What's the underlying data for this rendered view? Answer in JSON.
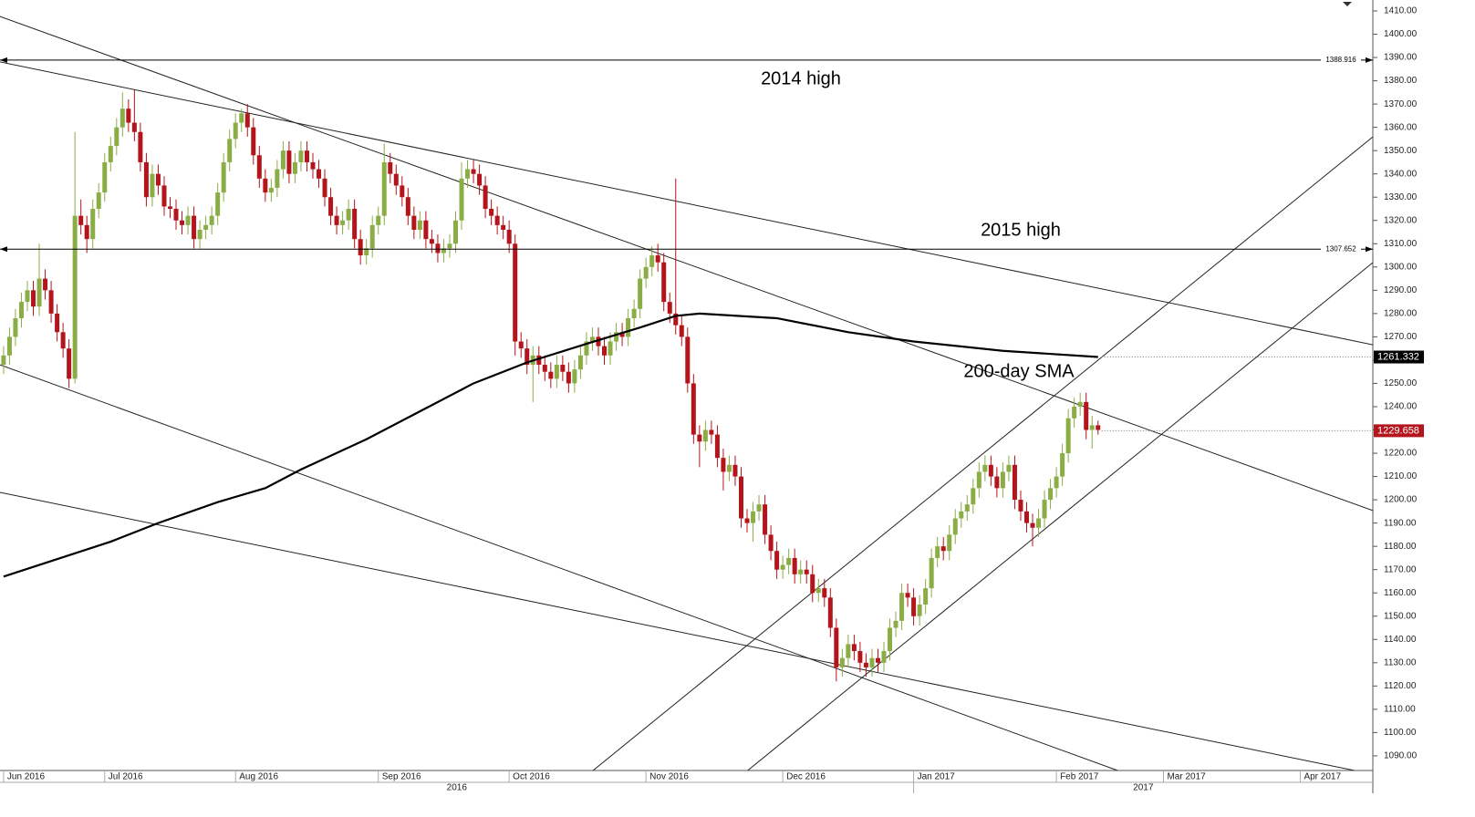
{
  "chart_data": {
    "type": "candlestick",
    "ylim": [
      1083.7,
      1414.7
    ],
    "xlim": [
      -0.6,
      230.2
    ],
    "yticks": [
      {
        "value": 1090,
        "label": "1090.00"
      },
      {
        "value": 1100,
        "label": "1100.00"
      },
      {
        "value": 1110,
        "label": "1110.00"
      },
      {
        "value": 1120,
        "label": "1120.00"
      },
      {
        "value": 1130,
        "label": "1130.00"
      },
      {
        "value": 1140,
        "label": "1140.00"
      },
      {
        "value": 1150,
        "label": "1150.00"
      },
      {
        "value": 1160,
        "label": "1160.00"
      },
      {
        "value": 1170,
        "label": "1170.00"
      },
      {
        "value": 1180,
        "label": "1180.00"
      },
      {
        "value": 1190,
        "label": "1190.00"
      },
      {
        "value": 1200,
        "label": "1200.00"
      },
      {
        "value": 1210,
        "label": "1210.00"
      },
      {
        "value": 1220,
        "label": "1220.00"
      },
      {
        "value": 1230,
        "label": "1230.00"
      },
      {
        "value": 1240,
        "label": "1240.00"
      },
      {
        "value": 1250,
        "label": "1250.00"
      },
      {
        "value": 1260,
        "label": "1260.00"
      },
      {
        "value": 1270,
        "label": "1270.00"
      },
      {
        "value": 1280,
        "label": "1280.00"
      },
      {
        "value": 1290,
        "label": "1290.00"
      },
      {
        "value": 1300,
        "label": "1300.00"
      },
      {
        "value": 1310,
        "label": "1310.00"
      },
      {
        "value": 1320,
        "label": "1320.00"
      },
      {
        "value": 1330,
        "label": "1330.00"
      },
      {
        "value": 1340,
        "label": "1340.00"
      },
      {
        "value": 1350,
        "label": "1350.00"
      },
      {
        "value": 1360,
        "label": "1360.00"
      },
      {
        "value": 1370,
        "label": "1370.00"
      },
      {
        "value": 1380,
        "label": "1380.00"
      },
      {
        "value": 1390,
        "label": "1390.00"
      },
      {
        "value": 1400,
        "label": "1400.00"
      },
      {
        "value": 1410,
        "label": "1410.00"
      }
    ],
    "xticks": [
      {
        "value": 0,
        "label": "Jun 2016"
      },
      {
        "value": 17,
        "label": "Jul 2016"
      },
      {
        "value": 39,
        "label": "Aug 2016"
      },
      {
        "value": 63,
        "label": "Sep 2016"
      },
      {
        "value": 85,
        "label": "Oct 2016"
      },
      {
        "value": 108,
        "label": "Nov 2016"
      },
      {
        "value": 131,
        "label": "Dec 2016"
      },
      {
        "value": 153,
        "label": "Jan 2017"
      },
      {
        "value": 177,
        "label": "Feb 2017"
      },
      {
        "value": 195,
        "label": "Mar 2017"
      },
      {
        "value": 218,
        "label": "Apr 2017"
      }
    ],
    "years": [
      "2016",
      "2017"
    ],
    "up_color": "#8aad45",
    "down_color": "#b4141b",
    "candles": [
      [
        1258,
        1266,
        1254,
        1262
      ],
      [
        1262,
        1274,
        1258,
        1270
      ],
      [
        1270,
        1282,
        1266,
        1278
      ],
      [
        1278,
        1289,
        1274,
        1285
      ],
      [
        1285,
        1294,
        1281,
        1290
      ],
      [
        1290,
        1294,
        1279,
        1283
      ],
      [
        1283,
        1310,
        1279,
        1295
      ],
      [
        1295,
        1299,
        1286,
        1290
      ],
      [
        1290,
        1294,
        1276,
        1280
      ],
      [
        1280,
        1284,
        1268,
        1272
      ],
      [
        1272,
        1276,
        1261,
        1265
      ],
      [
        1265,
        1269,
        1248,
        1252
      ],
      [
        1252,
        1358,
        1250,
        1322
      ],
      [
        1322,
        1329,
        1314,
        1318
      ],
      [
        1318,
        1322,
        1306,
        1312
      ],
      [
        1312,
        1329,
        1308,
        1325
      ],
      [
        1325,
        1336,
        1321,
        1332
      ],
      [
        1332,
        1349,
        1328,
        1345
      ],
      [
        1345,
        1356,
        1341,
        1352
      ],
      [
        1352,
        1364,
        1348,
        1360
      ],
      [
        1360,
        1375,
        1356,
        1368
      ],
      [
        1368,
        1372,
        1358,
        1362
      ],
      [
        1362,
        1376,
        1354,
        1358
      ],
      [
        1358,
        1362,
        1341,
        1345
      ],
      [
        1345,
        1349,
        1326,
        1330
      ],
      [
        1330,
        1344,
        1326,
        1340
      ],
      [
        1340,
        1344,
        1331,
        1335
      ],
      [
        1335,
        1339,
        1322,
        1326
      ],
      [
        1326,
        1330,
        1321,
        1325
      ],
      [
        1325,
        1329,
        1316,
        1320
      ],
      [
        1320,
        1324,
        1314,
        1318
      ],
      [
        1318,
        1326,
        1314,
        1322
      ],
      [
        1322,
        1326,
        1308,
        1312
      ],
      [
        1312,
        1320,
        1308,
        1316
      ],
      [
        1316,
        1322,
        1312,
        1318
      ],
      [
        1318,
        1326,
        1314,
        1322
      ],
      [
        1322,
        1336,
        1318,
        1332
      ],
      [
        1332,
        1349,
        1328,
        1345
      ],
      [
        1345,
        1359,
        1341,
        1355
      ],
      [
        1355,
        1366,
        1351,
        1362
      ],
      [
        1362,
        1368,
        1358,
        1366
      ],
      [
        1366,
        1370,
        1356,
        1360
      ],
      [
        1360,
        1364,
        1344,
        1348
      ],
      [
        1348,
        1352,
        1334,
        1338
      ],
      [
        1338,
        1342,
        1328,
        1332
      ],
      [
        1332,
        1338,
        1328,
        1334
      ],
      [
        1334,
        1346,
        1330,
        1342
      ],
      [
        1342,
        1354,
        1338,
        1350
      ],
      [
        1350,
        1354,
        1336,
        1340
      ],
      [
        1340,
        1349,
        1336,
        1345
      ],
      [
        1345,
        1354,
        1341,
        1350
      ],
      [
        1350,
        1354,
        1341,
        1345
      ],
      [
        1345,
        1349,
        1338,
        1342
      ],
      [
        1342,
        1346,
        1334,
        1338
      ],
      [
        1338,
        1342,
        1326,
        1330
      ],
      [
        1330,
        1334,
        1318,
        1322
      ],
      [
        1322,
        1326,
        1314,
        1318
      ],
      [
        1318,
        1324,
        1314,
        1320
      ],
      [
        1320,
        1329,
        1316,
        1325
      ],
      [
        1325,
        1329,
        1308,
        1312
      ],
      [
        1312,
        1316,
        1301,
        1305
      ],
      [
        1305,
        1312,
        1301,
        1308
      ],
      [
        1308,
        1322,
        1304,
        1318
      ],
      [
        1318,
        1326,
        1314,
        1322
      ],
      [
        1322,
        1353,
        1318,
        1345
      ],
      [
        1345,
        1349,
        1336,
        1340
      ],
      [
        1340,
        1344,
        1331,
        1335
      ],
      [
        1335,
        1339,
        1326,
        1330
      ],
      [
        1330,
        1334,
        1318,
        1322
      ],
      [
        1322,
        1326,
        1312,
        1316
      ],
      [
        1316,
        1324,
        1312,
        1320
      ],
      [
        1320,
        1324,
        1308,
        1312
      ],
      [
        1312,
        1316,
        1306,
        1310
      ],
      [
        1310,
        1314,
        1302,
        1306
      ],
      [
        1306,
        1312,
        1302,
        1308
      ],
      [
        1308,
        1314,
        1304,
        1310
      ],
      [
        1310,
        1324,
        1306,
        1320
      ],
      [
        1320,
        1345,
        1316,
        1338
      ],
      [
        1338,
        1346,
        1334,
        1342
      ],
      [
        1342,
        1346,
        1336,
        1340
      ],
      [
        1340,
        1344,
        1331,
        1335
      ],
      [
        1335,
        1339,
        1321,
        1325
      ],
      [
        1325,
        1329,
        1318,
        1322
      ],
      [
        1322,
        1326,
        1314,
        1318
      ],
      [
        1318,
        1322,
        1312,
        1316
      ],
      [
        1316,
        1320,
        1306,
        1310
      ],
      [
        1310,
        1314,
        1262,
        1268
      ],
      [
        1268,
        1272,
        1261,
        1265
      ],
      [
        1265,
        1269,
        1254,
        1258
      ],
      [
        1258,
        1266,
        1242,
        1262
      ],
      [
        1262,
        1266,
        1254,
        1258
      ],
      [
        1258,
        1262,
        1251,
        1255
      ],
      [
        1255,
        1259,
        1248,
        1252
      ],
      [
        1252,
        1262,
        1248,
        1258
      ],
      [
        1258,
        1262,
        1251,
        1255
      ],
      [
        1255,
        1259,
        1246,
        1250
      ],
      [
        1250,
        1260,
        1246,
        1256
      ],
      [
        1256,
        1266,
        1252,
        1262
      ],
      [
        1262,
        1272,
        1258,
        1268
      ],
      [
        1268,
        1274,
        1264,
        1270
      ],
      [
        1270,
        1274,
        1262,
        1266
      ],
      [
        1266,
        1270,
        1258,
        1262
      ],
      [
        1262,
        1272,
        1258,
        1268
      ],
      [
        1268,
        1276,
        1264,
        1272
      ],
      [
        1272,
        1276,
        1266,
        1270
      ],
      [
        1270,
        1282,
        1266,
        1278
      ],
      [
        1278,
        1286,
        1274,
        1282
      ],
      [
        1282,
        1299,
        1278,
        1295
      ],
      [
        1295,
        1304,
        1291,
        1300
      ],
      [
        1300,
        1309,
        1296,
        1305
      ],
      [
        1305,
        1310,
        1298,
        1302
      ],
      [
        1302,
        1306,
        1281,
        1285
      ],
      [
        1285,
        1289,
        1276,
        1280
      ],
      [
        1280,
        1338,
        1271,
        1275
      ],
      [
        1275,
        1279,
        1266,
        1270
      ],
      [
        1270,
        1274,
        1246,
        1250
      ],
      [
        1250,
        1254,
        1224,
        1228
      ],
      [
        1228,
        1232,
        1214,
        1225
      ],
      [
        1225,
        1234,
        1221,
        1230
      ],
      [
        1230,
        1234,
        1224,
        1228
      ],
      [
        1228,
        1232,
        1214,
        1218
      ],
      [
        1218,
        1222,
        1204,
        1212
      ],
      [
        1212,
        1219,
        1208,
        1215
      ],
      [
        1215,
        1219,
        1206,
        1210
      ],
      [
        1210,
        1214,
        1188,
        1192
      ],
      [
        1192,
        1196,
        1186,
        1190
      ],
      [
        1190,
        1199,
        1182,
        1195
      ],
      [
        1195,
        1202,
        1191,
        1198
      ],
      [
        1198,
        1202,
        1181,
        1185
      ],
      [
        1185,
        1189,
        1174,
        1178
      ],
      [
        1178,
        1182,
        1166,
        1170
      ],
      [
        1170,
        1176,
        1166,
        1172
      ],
      [
        1172,
        1179,
        1168,
        1175
      ],
      [
        1175,
        1179,
        1164,
        1168
      ],
      [
        1168,
        1174,
        1164,
        1170
      ],
      [
        1170,
        1174,
        1164,
        1168
      ],
      [
        1168,
        1172,
        1156,
        1160
      ],
      [
        1160,
        1166,
        1156,
        1162
      ],
      [
        1162,
        1166,
        1154,
        1158
      ],
      [
        1158,
        1162,
        1141,
        1145
      ],
      [
        1145,
        1149,
        1122,
        1128
      ],
      [
        1128,
        1136,
        1124,
        1132
      ],
      [
        1132,
        1142,
        1128,
        1138
      ],
      [
        1138,
        1142,
        1131,
        1135
      ],
      [
        1135,
        1139,
        1126,
        1130
      ],
      [
        1130,
        1134,
        1124,
        1128
      ],
      [
        1128,
        1136,
        1124,
        1132
      ],
      [
        1132,
        1136,
        1126,
        1130
      ],
      [
        1130,
        1139,
        1126,
        1135
      ],
      [
        1135,
        1149,
        1131,
        1145
      ],
      [
        1145,
        1152,
        1141,
        1148
      ],
      [
        1148,
        1164,
        1144,
        1160
      ],
      [
        1160,
        1164,
        1154,
        1158
      ],
      [
        1158,
        1162,
        1146,
        1150
      ],
      [
        1150,
        1159,
        1146,
        1155
      ],
      [
        1155,
        1166,
        1151,
        1162
      ],
      [
        1162,
        1179,
        1158,
        1175
      ],
      [
        1175,
        1184,
        1171,
        1180
      ],
      [
        1180,
        1184,
        1174,
        1178
      ],
      [
        1178,
        1189,
        1174,
        1185
      ],
      [
        1185,
        1196,
        1181,
        1192
      ],
      [
        1192,
        1199,
        1188,
        1195
      ],
      [
        1195,
        1202,
        1191,
        1198
      ],
      [
        1198,
        1209,
        1194,
        1205
      ],
      [
        1205,
        1216,
        1201,
        1212
      ],
      [
        1212,
        1219,
        1208,
        1215
      ],
      [
        1215,
        1219,
        1206,
        1210
      ],
      [
        1210,
        1214,
        1201,
        1205
      ],
      [
        1205,
        1216,
        1201,
        1212
      ],
      [
        1212,
        1219,
        1208,
        1215
      ],
      [
        1215,
        1219,
        1196,
        1200
      ],
      [
        1200,
        1204,
        1191,
        1195
      ],
      [
        1195,
        1199,
        1186,
        1190
      ],
      [
        1190,
        1194,
        1180,
        1188
      ],
      [
        1188,
        1196,
        1184,
        1192
      ],
      [
        1192,
        1204,
        1188,
        1200
      ],
      [
        1200,
        1209,
        1196,
        1205
      ],
      [
        1205,
        1214,
        1201,
        1210
      ],
      [
        1210,
        1224,
        1206,
        1220
      ],
      [
        1220,
        1239,
        1216,
        1235
      ],
      [
        1235,
        1244,
        1231,
        1240
      ],
      [
        1240,
        1246,
        1236,
        1242
      ],
      [
        1242,
        1246,
        1226,
        1230
      ],
      [
        1230,
        1236,
        1222,
        1232
      ],
      [
        1232,
        1234,
        1228,
        1230
      ]
    ],
    "sma": {
      "color": "#000000",
      "x": [
        0,
        18,
        26,
        36,
        44,
        50,
        61,
        70,
        79,
        88,
        98,
        107,
        113,
        117,
        130,
        142,
        153,
        168,
        184
      ],
      "values": [
        1167,
        1182,
        1190,
        1199,
        1205,
        1213,
        1226,
        1238,
        1250,
        1259,
        1267,
        1274,
        1279,
        1280,
        1278,
        1272,
        1268,
        1264,
        1261.332
      ]
    },
    "trendlines": [
      {
        "x": [
          -0.6,
          230.2
        ],
        "values": [
          1388.1,
          1266.6
        ]
      },
      {
        "x": [
          -0.6,
          230.2
        ],
        "values": [
          1407.6,
          1195.4
        ]
      },
      {
        "x": [
          -0.6,
          187.3
        ],
        "values": [
          1258,
          1083.7
        ]
      },
      {
        "x": [
          -0.6,
          227.1
        ],
        "values": [
          1203.2,
          1083.7
        ]
      },
      {
        "x": [
          99.1,
          230.2
        ],
        "values": [
          1083.7,
          1355.9
        ]
      },
      {
        "x": [
          125.1,
          230.2
        ],
        "values": [
          1083.7,
          1301.9
        ]
      }
    ],
    "levels": [
      1388.916,
      1307.652
    ],
    "price_markers": [
      {
        "value": 1261.332,
        "color": "#000000"
      },
      {
        "value": 1229.658,
        "color": "#b4141b"
      }
    ],
    "annotations": [
      "2014 high",
      "2015 high",
      "200-day SMA"
    ]
  }
}
